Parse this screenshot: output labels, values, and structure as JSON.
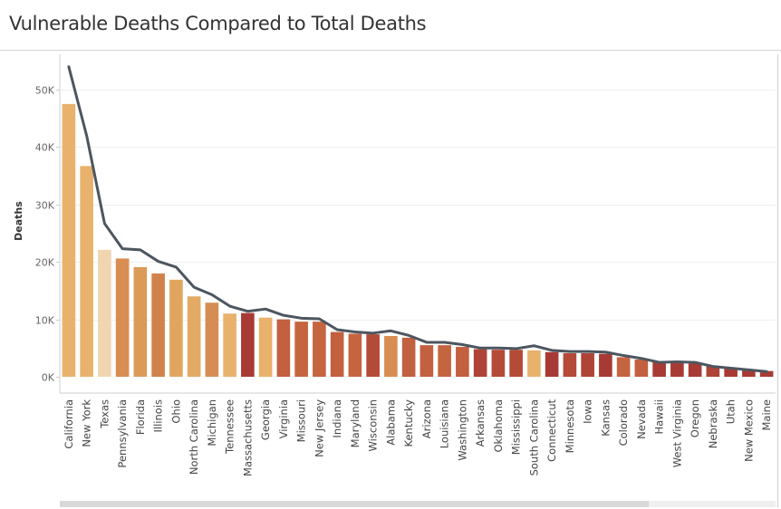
{
  "title": "Vulnerable Deaths Compared to Total Deaths",
  "chart_data": {
    "type": "bar",
    "title": "Vulnerable Deaths Compared to Total Deaths",
    "xlabel": "",
    "ylabel": "Deaths",
    "ylim": [
      0,
      56000
    ],
    "yticks": [
      0,
      10000,
      20000,
      30000,
      40000,
      50000
    ],
    "ytick_labels": [
      "0K",
      "10K",
      "20K",
      "30K",
      "40K",
      "50K"
    ],
    "grid": true,
    "categories": [
      "California",
      "New York",
      "Texas",
      "Pennsylvania",
      "Florida",
      "Illinois",
      "Ohio",
      "North Carolina",
      "Michigan",
      "Tennessee",
      "Massachusetts",
      "Georgia",
      "Virginia",
      "Missouri",
      "New Jersey",
      "Indiana",
      "Maryland",
      "Wisconsin",
      "Alabama",
      "Kentucky",
      "Arizona",
      "Louisiana",
      "Washington",
      "Arkansas",
      "Oklahoma",
      "Mississippi",
      "South Carolina",
      "Connecticut",
      "Minnesota",
      "Iowa",
      "Kansas",
      "Colorado",
      "Nevada",
      "Hawaii",
      "West Virginia",
      "Oregon",
      "Nebraska",
      "Utah",
      "New Mexico",
      "Maine"
    ],
    "series": [
      {
        "type": "bar",
        "values": [
          47500,
          36700,
          22100,
          20600,
          19100,
          18000,
          16900,
          14000,
          12900,
          11000,
          11100,
          10300,
          10000,
          9600,
          9600,
          7800,
          7500,
          7400,
          7100,
          6800,
          5500,
          5500,
          5200,
          4800,
          4700,
          4700,
          4600,
          4300,
          4100,
          4100,
          4000,
          3400,
          3000,
          2600,
          2600,
          2300,
          1900,
          1500,
          1200,
          1000
        ],
        "colors": [
          "#e8b26c",
          "#e8b26c",
          "#f1d5b0",
          "#d88e52",
          "#dc9a58",
          "#d1824b",
          "#e0a65f",
          "#e3aa66",
          "#d58d54",
          "#e8b26c",
          "#a83a35",
          "#e8b26c",
          "#c2603f",
          "#c5653f",
          "#c5653f",
          "#c2603f",
          "#c5653f",
          "#b44a38",
          "#d88e52",
          "#c2603f",
          "#c2603f",
          "#c5653f",
          "#c2603f",
          "#ae4437",
          "#b44a38",
          "#b44a38",
          "#e8b26c",
          "#a83a35",
          "#b44a38",
          "#ae4437",
          "#a83a35",
          "#c5653f",
          "#c2603f",
          "#a83a35",
          "#a83a35",
          "#a83a35",
          "#ae4437",
          "#a83a35",
          "#a83a35",
          "#a83a35"
        ]
      },
      {
        "type": "line",
        "values": [
          54000,
          42000,
          26700,
          22300,
          22100,
          20100,
          19100,
          15600,
          14300,
          12300,
          11400,
          11800,
          10700,
          10200,
          10100,
          8200,
          7800,
          7600,
          8000,
          7200,
          6000,
          6000,
          5600,
          5000,
          5000,
          4900,
          5400,
          4600,
          4400,
          4400,
          4300,
          3700,
          3200,
          2500,
          2600,
          2500,
          1800,
          1500,
          1200,
          900
        ],
        "color": "#4d5660"
      }
    ]
  }
}
